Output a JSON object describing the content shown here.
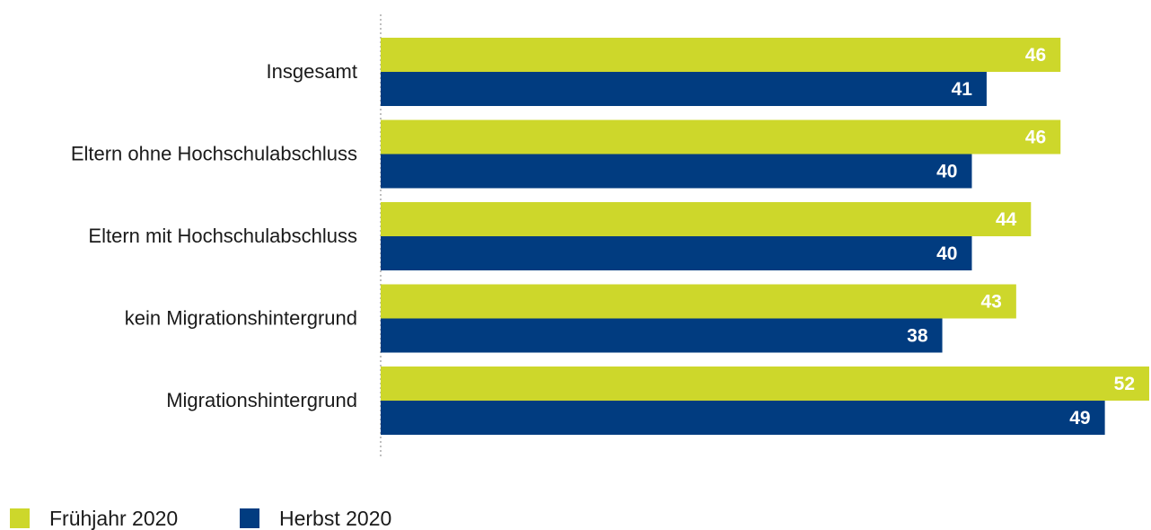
{
  "chart_data": {
    "type": "bar",
    "orientation": "horizontal",
    "categories": [
      "Insgesamt",
      "Eltern ohne Hochschulabschluss",
      "Eltern mit Hochschulabschluss",
      "kein Migrationshintergrund",
      "Migrationshintergrund"
    ],
    "series": [
      {
        "name": "Frühjahr 2020",
        "color": "#cdd72b",
        "values": [
          46,
          46,
          44,
          43,
          52
        ]
      },
      {
        "name": "Herbst 2020",
        "color": "#013c80",
        "values": [
          41,
          40,
          40,
          38,
          49
        ]
      }
    ],
    "data_labels": true,
    "xlim": [
      0,
      52
    ],
    "grid": false,
    "legend_position": "bottom-left"
  }
}
